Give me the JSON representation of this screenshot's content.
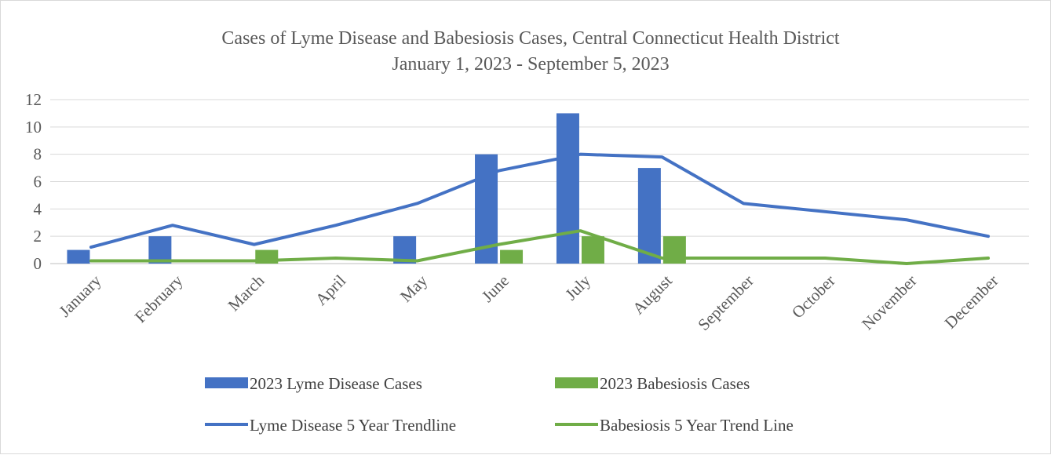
{
  "chart_data": {
    "type": "bar",
    "title": "Cases of Lyme Disease and Babesiosis Cases, Central Connecticut Health District",
    "subtitle": "January 1, 2023 - September 5, 2023",
    "categories": [
      "January",
      "February",
      "March",
      "April",
      "May",
      "June",
      "July",
      "August",
      "September",
      "October",
      "November",
      "December"
    ],
    "ylim": [
      0,
      12
    ],
    "yticks": [
      0,
      2,
      4,
      6,
      8,
      10,
      12
    ],
    "grid": true,
    "legend_position": "bottom",
    "series": [
      {
        "name": "2023 Lyme Disease Cases",
        "kind": "bar",
        "color": "#4472c4",
        "values": [
          1,
          2,
          null,
          null,
          2,
          8,
          11,
          7,
          null,
          null,
          null,
          null
        ]
      },
      {
        "name": "2023 Babesiosis Cases",
        "kind": "bar",
        "color": "#70ad47",
        "values": [
          null,
          null,
          1,
          null,
          null,
          1,
          2,
          2,
          null,
          null,
          null,
          null
        ]
      },
      {
        "name": "Lyme Disease 5 Year Trendline",
        "kind": "line",
        "color": "#4472c4",
        "values": [
          1.2,
          2.8,
          1.4,
          2.8,
          4.4,
          6.8,
          8.0,
          7.8,
          4.4,
          3.8,
          3.2,
          2.0
        ]
      },
      {
        "name": "Babesiosis 5 Year Trend Line",
        "kind": "line",
        "color": "#70ad47",
        "values": [
          0.2,
          0.2,
          0.2,
          0.4,
          0.2,
          1.4,
          2.4,
          0.4,
          0.4,
          0.4,
          0.0,
          0.4
        ]
      }
    ]
  }
}
